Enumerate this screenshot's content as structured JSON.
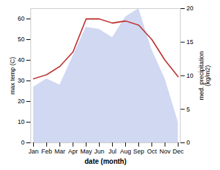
{
  "chart_data": {
    "type": "line",
    "categories": [
      "Jan",
      "Feb",
      "Mar",
      "Apr",
      "May",
      "Jun",
      "Jul",
      "Aug",
      "Sep",
      "Oct",
      "Nov",
      "Dec"
    ],
    "xlabel": "date (month)",
    "ylabel": "max temp (C)",
    "y2label": "med. precipitation\n(kg/m2)",
    "ylim": [
      0,
      65
    ],
    "yticks": [
      0,
      10,
      20,
      30,
      40,
      50,
      60
    ],
    "y2lim": [
      0,
      20
    ],
    "y2ticks": [
      0,
      5,
      10,
      15,
      20
    ],
    "series": [
      {
        "type": "area",
        "color": "#aab8e8",
        "values": [
          27,
          31,
          28,
          42,
          56,
          55,
          51,
          61,
          65,
          45,
          31,
          10
        ]
      },
      {
        "type": "line",
        "color": "#c03535",
        "values": [
          31,
          33,
          37,
          44,
          60,
          60,
          58,
          59,
          57,
          50,
          40,
          32
        ]
      }
    ]
  }
}
